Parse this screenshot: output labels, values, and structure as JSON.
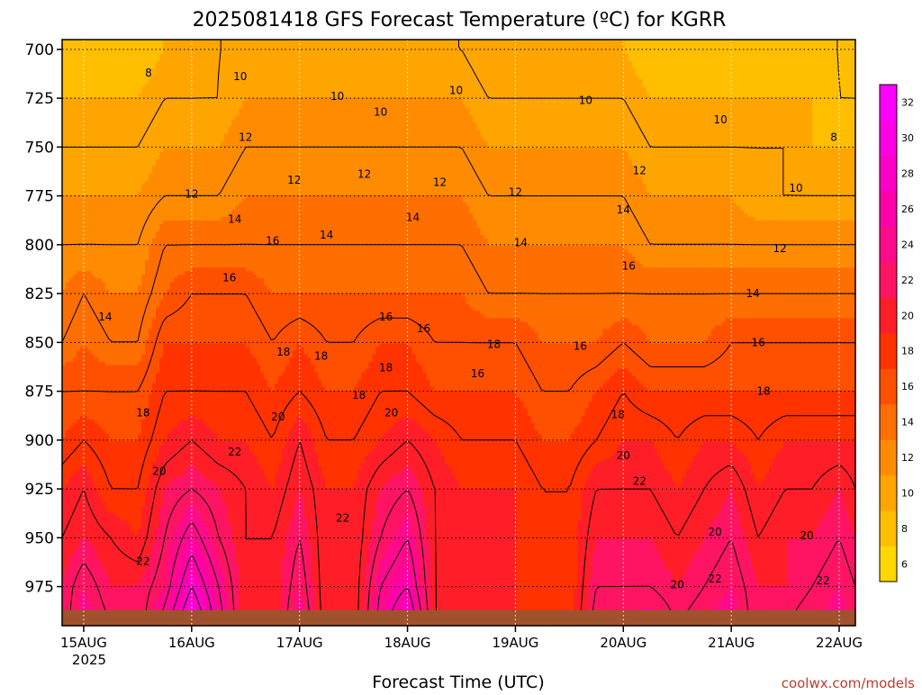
{
  "chart_data": {
    "type": "heatmap",
    "title": "2025081418 GFS Forecast Temperature (ºC) for KGRR",
    "xlabel": "Forecast Time (UTC)",
    "ylabel": "",
    "credit": "coolwx.com/models",
    "x_ticks": [
      "15AUG",
      "16AUG",
      "17AUG",
      "18AUG",
      "19AUG",
      "20AUG",
      "21AUG",
      "22AUG"
    ],
    "x_year": "2025",
    "y_ticks": [
      "700",
      "725",
      "750",
      "775",
      "800",
      "825",
      "850",
      "875",
      "900",
      "925",
      "950",
      "975"
    ],
    "y_range": [
      995,
      695
    ],
    "x_range": [
      -0.2,
      7.15
    ],
    "colorbar_ticks": [
      "6",
      "8",
      "10",
      "12",
      "14",
      "16",
      "18",
      "20",
      "22",
      "24",
      "26",
      "28",
      "30",
      "32"
    ],
    "color_levels": [
      {
        "min": 4,
        "max": 7,
        "color": "#ffd700"
      },
      {
        "min": 7,
        "max": 9,
        "color": "#ffbe00"
      },
      {
        "min": 9,
        "max": 11,
        "color": "#ffa500"
      },
      {
        "min": 11,
        "max": 13,
        "color": "#ff8c00"
      },
      {
        "min": 13,
        "max": 15,
        "color": "#ff6e00"
      },
      {
        "min": 15,
        "max": 17,
        "color": "#ff5000"
      },
      {
        "min": 17,
        "max": 19,
        "color": "#ff3200"
      },
      {
        "min": 19,
        "max": 21,
        "color": "#ff1e28"
      },
      {
        "min": 21,
        "max": 23,
        "color": "#ff1464"
      },
      {
        "min": 23,
        "max": 25,
        "color": "#ff0a8c"
      },
      {
        "min": 25,
        "max": 27,
        "color": "#ff00aa"
      },
      {
        "min": 27,
        "max": 29,
        "color": "#ff00c8"
      },
      {
        "min": 29,
        "max": 31,
        "color": "#ff00e6"
      },
      {
        "min": 31,
        "max": 34,
        "color": "#ff00ff"
      }
    ],
    "terrain_color": "#a0522d",
    "surface_pressure": 987,
    "columns": {
      "day": [
        -0.2,
        0.0,
        0.25,
        0.5,
        0.75,
        1.0,
        1.25,
        1.5,
        1.75,
        2.0,
        2.25,
        2.5,
        2.75,
        3.0,
        3.25,
        3.5,
        3.75,
        4.0,
        4.25,
        4.5,
        4.75,
        5.0,
        5.25,
        5.5,
        5.75,
        6.0,
        6.25,
        6.5,
        6.75,
        7.0,
        7.15
      ],
      "p": [
        700,
        725,
        750,
        775,
        800,
        825,
        850,
        875,
        900,
        925,
        950,
        975,
        995
      ],
      "temperature": [
        [
          8,
          9,
          10,
          11,
          12,
          13,
          14,
          16,
          17,
          19,
          20,
          21,
          21
        ],
        [
          8,
          9,
          10,
          11,
          12,
          14,
          15,
          16,
          18,
          20,
          21,
          23,
          24
        ],
        [
          8,
          9,
          10,
          11,
          12,
          13,
          14,
          16,
          17,
          18,
          20,
          21,
          22
        ],
        [
          8,
          9,
          10,
          11,
          12,
          13,
          14,
          16,
          17,
          18,
          19,
          21,
          21
        ],
        [
          9,
          10,
          11,
          12,
          14,
          15,
          17,
          18,
          19,
          21,
          22,
          23,
          25
        ],
        [
          9,
          10,
          11,
          12,
          14,
          16,
          17,
          18,
          20,
          22,
          25,
          28,
          31
        ],
        [
          10,
          10,
          11,
          12,
          14,
          16,
          17,
          18,
          19,
          21,
          22,
          24,
          25
        ],
        [
          10,
          11,
          12,
          13,
          14,
          16,
          17,
          18,
          19,
          20,
          20,
          20,
          20
        ],
        [
          10,
          11,
          12,
          13,
          14,
          15,
          16,
          17,
          18,
          19,
          20,
          20,
          20
        ],
        [
          10,
          11,
          12,
          13,
          14,
          15,
          17,
          18,
          20,
          21,
          22,
          23,
          24
        ],
        [
          10,
          11,
          12,
          13,
          14,
          15,
          16,
          17,
          18,
          19,
          19,
          19,
          19
        ],
        [
          10,
          11,
          12,
          13,
          14,
          15,
          16,
          17,
          18,
          19,
          19,
          19,
          19
        ],
        [
          10,
          11,
          12,
          13,
          14,
          15,
          17,
          18,
          19,
          21,
          22,
          24,
          25
        ],
        [
          10,
          11,
          12,
          13,
          14,
          15,
          17,
          18,
          20,
          22,
          24,
          26,
          29
        ],
        [
          10,
          11,
          12,
          13,
          14,
          15,
          16,
          17,
          19,
          20,
          20,
          20,
          20
        ],
        [
          10,
          11,
          12,
          13,
          14,
          15,
          16,
          17,
          18,
          19,
          19,
          19,
          19
        ],
        [
          9,
          10,
          11,
          12,
          13,
          14,
          16,
          17,
          18,
          19,
          19,
          19,
          19
        ],
        [
          9,
          10,
          11,
          12,
          13,
          14,
          16,
          17,
          18,
          19,
          19,
          19,
          19
        ],
        [
          9,
          10,
          11,
          12,
          13,
          14,
          15,
          16,
          17,
          18,
          18,
          18,
          18
        ],
        [
          9,
          10,
          11,
          12,
          13,
          14,
          15,
          16,
          17,
          18,
          18,
          18,
          18
        ],
        [
          9,
          10,
          11,
          12,
          13,
          14,
          15,
          17,
          18,
          20,
          21,
          22,
          23
        ],
        [
          9,
          10,
          11,
          12,
          13,
          14,
          16,
          18,
          19,
          20,
          21,
          22,
          23
        ],
        [
          8,
          9,
          10,
          11,
          12,
          14,
          15,
          17,
          19,
          20,
          21,
          22,
          24
        ],
        [
          8,
          9,
          10,
          11,
          12,
          14,
          15,
          17,
          18,
          19,
          20,
          21,
          22
        ],
        [
          8,
          9,
          10,
          11,
          12,
          14,
          15,
          17,
          19,
          20,
          21,
          22,
          23
        ],
        [
          8,
          9,
          10,
          11,
          12,
          14,
          16,
          17,
          19,
          21,
          22,
          23,
          24
        ],
        [
          8,
          9,
          10,
          10,
          12,
          14,
          16,
          17,
          18,
          19,
          20,
          21,
          21
        ],
        [
          8,
          9,
          10,
          10,
          12,
          14,
          16,
          17,
          19,
          20,
          21,
          21,
          22
        ],
        [
          8,
          9,
          9,
          10,
          12,
          14,
          16,
          17,
          19,
          20,
          21,
          22,
          23
        ],
        [
          8,
          8,
          9,
          10,
          12,
          14,
          16,
          17,
          19,
          21,
          22,
          23,
          24
        ],
        [
          7,
          8,
          9,
          10,
          12,
          14,
          16,
          17,
          19,
          20,
          21,
          22,
          22
        ]
      ]
    },
    "contour_labels": [
      {
        "text": "8",
        "day": 0.6,
        "p": 712
      },
      {
        "text": "10",
        "day": 1.45,
        "p": 714
      },
      {
        "text": "10",
        "day": 2.35,
        "p": 724
      },
      {
        "text": "10",
        "day": 2.75,
        "p": 732
      },
      {
        "text": "10",
        "day": 3.45,
        "p": 721
      },
      {
        "text": "10",
        "day": 4.65,
        "p": 726
      },
      {
        "text": "10",
        "day": 5.9,
        "p": 736
      },
      {
        "text": "8",
        "day": 6.95,
        "p": 745
      },
      {
        "text": "12",
        "day": 1.5,
        "p": 745
      },
      {
        "text": "12",
        "day": 1.95,
        "p": 767
      },
      {
        "text": "12",
        "day": 2.6,
        "p": 764
      },
      {
        "text": "12",
        "day": 3.3,
        "p": 768
      },
      {
        "text": "12",
        "day": 4.0,
        "p": 773
      },
      {
        "text": "12",
        "day": 5.15,
        "p": 762
      },
      {
        "text": "10",
        "day": 6.6,
        "p": 771
      },
      {
        "text": "12",
        "day": 1.0,
        "p": 774
      },
      {
        "text": "14",
        "day": 1.4,
        "p": 787
      },
      {
        "text": "14",
        "day": 2.25,
        "p": 795
      },
      {
        "text": "14",
        "day": 3.05,
        "p": 786
      },
      {
        "text": "14",
        "day": 4.05,
        "p": 799
      },
      {
        "text": "14",
        "day": 5.0,
        "p": 782
      },
      {
        "text": "12",
        "day": 6.45,
        "p": 802
      },
      {
        "text": "16",
        "day": 1.75,
        "p": 798
      },
      {
        "text": "16",
        "day": 1.35,
        "p": 817
      },
      {
        "text": "16",
        "day": 5.05,
        "p": 811
      },
      {
        "text": "14",
        "day": 6.2,
        "p": 825
      },
      {
        "text": "14",
        "day": 0.2,
        "p": 837
      },
      {
        "text": "16",
        "day": 2.8,
        "p": 837
      },
      {
        "text": "16",
        "day": 3.15,
        "p": 843
      },
      {
        "text": "16",
        "day": 4.6,
        "p": 852
      },
      {
        "text": "16",
        "day": 6.25,
        "p": 850
      },
      {
        "text": "18",
        "day": 1.85,
        "p": 855
      },
      {
        "text": "18",
        "day": 2.2,
        "p": 857
      },
      {
        "text": "18",
        "day": 2.8,
        "p": 863
      },
      {
        "text": "18",
        "day": 3.8,
        "p": 851
      },
      {
        "text": "16",
        "day": 3.65,
        "p": 866
      },
      {
        "text": "18",
        "day": 2.55,
        "p": 877
      },
      {
        "text": "18",
        "day": 6.3,
        "p": 875
      },
      {
        "text": "18",
        "day": 0.55,
        "p": 886
      },
      {
        "text": "20",
        "day": 1.8,
        "p": 888
      },
      {
        "text": "20",
        "day": 2.85,
        "p": 886
      },
      {
        "text": "18",
        "day": 4.95,
        "p": 887
      },
      {
        "text": "22",
        "day": 1.4,
        "p": 906
      },
      {
        "text": "20",
        "day": 0.7,
        "p": 916
      },
      {
        "text": "20",
        "day": 5.0,
        "p": 908
      },
      {
        "text": "22",
        "day": 5.15,
        "p": 921
      },
      {
        "text": "22",
        "day": 2.4,
        "p": 940
      },
      {
        "text": "20",
        "day": 5.85,
        "p": 947
      },
      {
        "text": "20",
        "day": 6.7,
        "p": 949
      },
      {
        "text": "22",
        "day": 0.55,
        "p": 962
      },
      {
        "text": "20",
        "day": 5.5,
        "p": 974
      },
      {
        "text": "22",
        "day": 5.85,
        "p": 971
      },
      {
        "text": "22",
        "day": 6.85,
        "p": 972
      }
    ]
  }
}
